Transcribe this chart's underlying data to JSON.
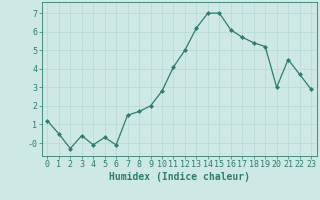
{
  "x": [
    0,
    1,
    2,
    3,
    4,
    5,
    6,
    7,
    8,
    9,
    10,
    11,
    12,
    13,
    14,
    15,
    16,
    17,
    18,
    19,
    20,
    21,
    22,
    23
  ],
  "y": [
    1.2,
    0.5,
    -0.3,
    0.4,
    -0.1,
    0.3,
    -0.1,
    1.5,
    1.7,
    2.0,
    2.8,
    4.1,
    5.0,
    6.2,
    7.0,
    7.0,
    6.1,
    5.7,
    5.4,
    5.2,
    3.0,
    4.5,
    3.7,
    2.9
  ],
  "line_color": "#2e7d6e",
  "marker": "D",
  "marker_size": 2,
  "bg_color": "#cde8e5",
  "grid_color": "#b8d8d5",
  "xlabel": "Humidex (Indice chaleur)",
  "xlim": [
    -0.5,
    23.5
  ],
  "ylim": [
    -0.7,
    7.6
  ],
  "yticks": [
    0,
    1,
    2,
    3,
    4,
    5,
    6,
    7
  ],
  "ytick_labels": [
    "-0",
    "1",
    "2",
    "3",
    "4",
    "5",
    "6",
    "7"
  ],
  "xticks": [
    0,
    1,
    2,
    3,
    4,
    5,
    6,
    7,
    8,
    9,
    10,
    11,
    12,
    13,
    14,
    15,
    16,
    17,
    18,
    19,
    20,
    21,
    22,
    23
  ],
  "axis_color": "#2e7d6e",
  "tick_color": "#2e7d6e",
  "label_color": "#2e7d6e",
  "font_size_label": 7,
  "font_size_tick": 6
}
